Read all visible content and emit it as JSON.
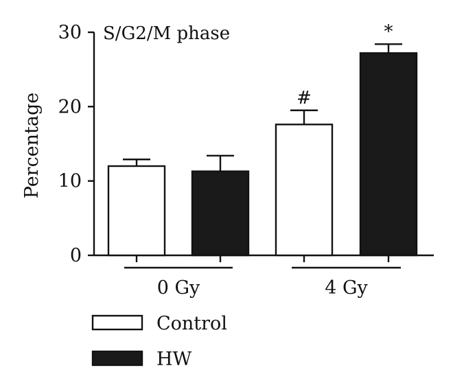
{
  "chart_data": {
    "type": "bar",
    "title": "S/G2/M phase",
    "ylabel": "Percentage",
    "ylim": [
      0,
      30
    ],
    "yticks": [
      "0",
      "10",
      "20",
      "30"
    ],
    "groups": [
      "0 Gy",
      "4 Gy"
    ],
    "series": [
      {
        "name": "Control",
        "color": "#ffffff",
        "values": [
          12.0,
          17.6
        ],
        "errors": [
          0.9,
          1.9
        ],
        "annotations": [
          "",
          "#"
        ]
      },
      {
        "name": "HW",
        "color": "#1a1a1a",
        "values": [
          11.3,
          27.2
        ],
        "errors": [
          2.1,
          1.2
        ],
        "annotations": [
          "",
          "*"
        ]
      }
    ],
    "legend": {
      "position": "bottom-left"
    }
  }
}
